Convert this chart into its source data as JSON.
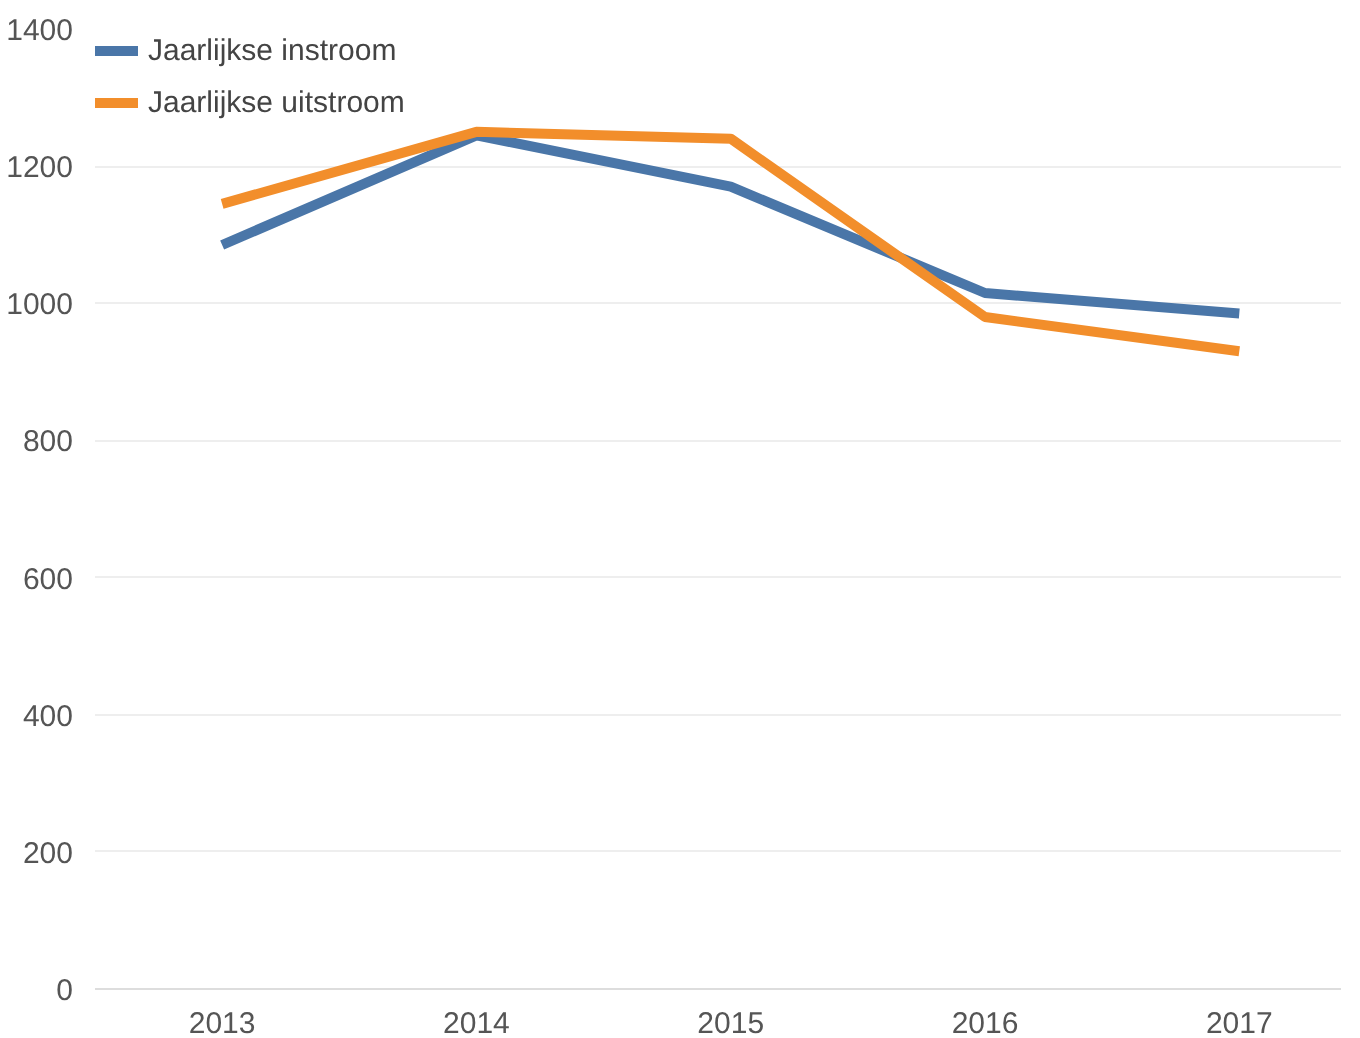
{
  "chart_data": {
    "type": "line",
    "categories": [
      "2013",
      "2014",
      "2015",
      "2016",
      "2017"
    ],
    "series": [
      {
        "name": "Jaarlijkse instroom",
        "color": "#4a76a8",
        "values": [
          1085,
          1245,
          1170,
          1015,
          985
        ]
      },
      {
        "name": "Jaarlijkse uitstroom",
        "color": "#f28e2b",
        "values": [
          1145,
          1250,
          1240,
          980,
          930
        ]
      }
    ],
    "ylim": [
      0,
      1400
    ],
    "yticks": [
      0,
      200,
      400,
      600,
      800,
      1000,
      1200,
      1400
    ],
    "grid": "y",
    "legend": "top left",
    "line_style": "solid",
    "marker": "none"
  }
}
